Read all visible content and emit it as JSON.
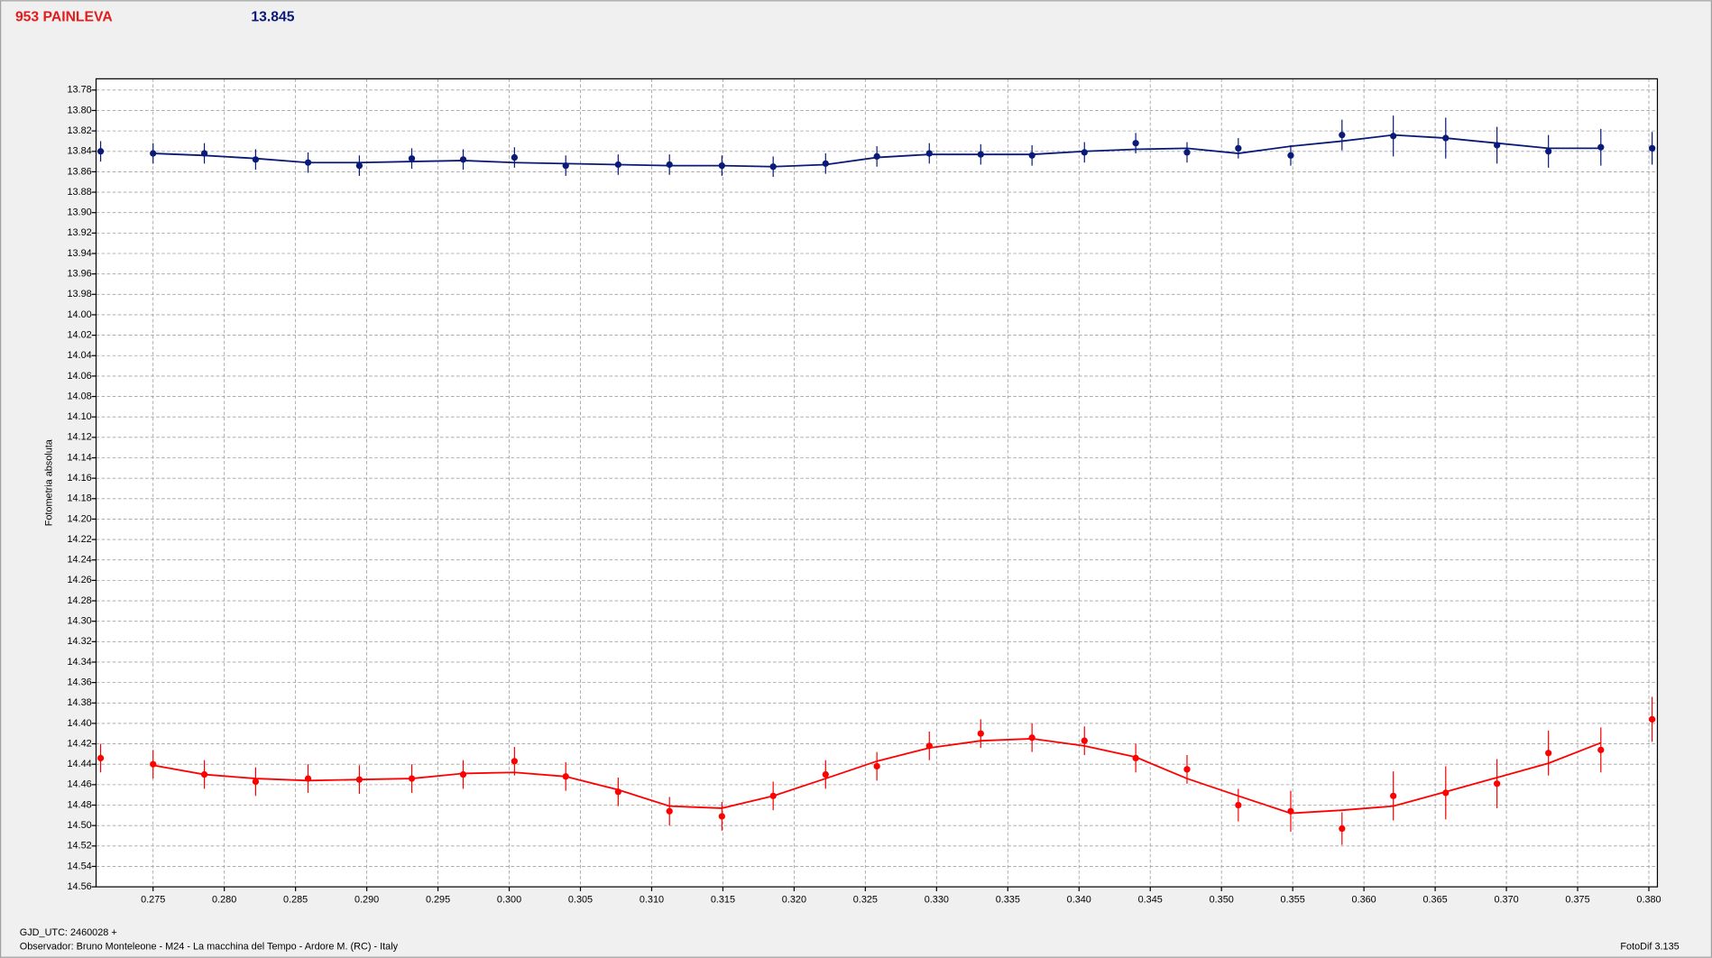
{
  "chart_data": {
    "type": "scatter",
    "title": "953 PAINLEVA",
    "subtitle": "13.845",
    "y_label": "Fotometria absoluta",
    "footer": "GJD_UTC: 2460028 +",
    "observer": "Observador: Bruno Monteleone - M24 - La macchina del Tempo - Ardore M. (RC) - Italy",
    "software": "FotoDif 3.135",
    "xlim": [
      0.271,
      0.3806
    ],
    "ylim": [
      13.769,
      14.56
    ],
    "y_inverted": true,
    "grid": true,
    "xticks": [
      0.275,
      {
        "value": 0.28,
        "label": "0.280"
      },
      0.285,
      {
        "value": 0.29,
        "label": "0.290"
      },
      0.295,
      {
        "value": 0.3,
        "label": "0.300"
      },
      0.305,
      {
        "value": 0.31,
        "label": "0.310"
      },
      0.315,
      {
        "value": 0.32,
        "label": "0.320"
      },
      0.325,
      {
        "value": 0.33,
        "label": "0.330"
      },
      0.335,
      {
        "value": 0.34,
        "label": "0.340"
      },
      0.345,
      {
        "value": 0.35,
        "label": "0.350"
      },
      0.355,
      {
        "value": 0.36,
        "label": "0.360"
      },
      0.365,
      {
        "value": 0.37,
        "label": "0.370"
      },
      0.375,
      {
        "value": 0.38,
        "label": "0.380"
      }
    ],
    "yticks": [
      13.78,
      {
        "value": 13.8,
        "label": "13.80"
      },
      13.82,
      13.84,
      13.86,
      13.88,
      {
        "value": 13.9,
        "label": "13.90"
      },
      13.92,
      13.94,
      13.96,
      13.98,
      {
        "value": 14,
        "label": "14.00"
      },
      14.02,
      14.04,
      14.06,
      14.08,
      {
        "value": 14.1,
        "label": "14.10"
      },
      14.12,
      14.14,
      14.16,
      14.18,
      {
        "value": 14.2,
        "label": "14.20"
      },
      14.22,
      14.24,
      14.26,
      14.28,
      {
        "value": 14.3,
        "label": "14.30"
      },
      14.32,
      14.34,
      14.36,
      14.38,
      {
        "value": 14.4,
        "label": "14.40"
      },
      14.42,
      14.44,
      14.46,
      14.48,
      {
        "value": 14.5,
        "label": "14.50"
      },
      14.52,
      14.54,
      14.56
    ],
    "series": [
      {
        "color": "#0a1a78",
        "style": "points",
        "x": [
          0.27132,
          0.275,
          0.2786,
          0.2822,
          0.28588,
          0.28948,
          0.29316,
          0.29677,
          0.30037,
          0.30397,
          0.30765,
          0.31125,
          0.31493,
          0.31853,
          0.32221,
          0.32581,
          0.32949,
          0.3331,
          0.3367,
          0.34038,
          0.34398,
          0.34758,
          0.35118,
          0.35486,
          0.35846,
          0.36206,
          0.36574,
          0.36934,
          0.37295,
          0.37663,
          0.38023
        ],
        "values": [
          13.84,
          13.842,
          13.842,
          13.848,
          13.851,
          13.854,
          13.847,
          13.848,
          13.846,
          13.854,
          13.853,
          13.853,
          13.854,
          13.855,
          13.852,
          13.845,
          13.842,
          13.843,
          13.844,
          13.841,
          13.832,
          13.841,
          13.837,
          13.844,
          13.824,
          13.825,
          13.827,
          13.834,
          13.84,
          13.836,
          13.837
        ],
        "errors": [
          0.01,
          0.01,
          0.01,
          0.01,
          0.01,
          0.01,
          0.01,
          0.01,
          0.01,
          0.01,
          0.01,
          0.01,
          0.01,
          0.01,
          0.01,
          0.01,
          0.01,
          0.01,
          0.01,
          0.01,
          0.01,
          0.01,
          0.01,
          0.01,
          0.015,
          0.02,
          0.02,
          0.018,
          0.016,
          0.018,
          0.016
        ]
      },
      {
        "color": "#0a1a78",
        "style": "line",
        "x": [
          0.275,
          0.2786,
          0.2822,
          0.28588,
          0.28948,
          0.29316,
          0.29677,
          0.30037,
          0.30397,
          0.30765,
          0.31125,
          0.31493,
          0.31853,
          0.32221,
          0.32581,
          0.32949,
          0.3331,
          0.3367,
          0.34038,
          0.34398,
          0.34758,
          0.35118,
          0.35486,
          0.35846,
          0.36206,
          0.36574,
          0.36934,
          0.37295,
          0.37663
        ],
        "values": [
          13.842,
          13.844,
          13.847,
          13.851,
          13.851,
          13.85,
          13.849,
          13.851,
          13.852,
          13.853,
          13.854,
          13.854,
          13.855,
          13.853,
          13.846,
          13.843,
          13.843,
          13.843,
          13.84,
          13.838,
          13.837,
          13.842,
          13.835,
          13.83,
          13.824,
          13.827,
          13.832,
          13.837,
          13.837
        ]
      },
      {
        "color": "#ff0000",
        "style": "points",
        "x": [
          0.27132,
          0.275,
          0.2786,
          0.2822,
          0.28588,
          0.28948,
          0.29316,
          0.29677,
          0.30037,
          0.30397,
          0.30765,
          0.31125,
          0.31493,
          0.31853,
          0.32221,
          0.32581,
          0.32949,
          0.3331,
          0.3367,
          0.34038,
          0.34398,
          0.34758,
          0.35118,
          0.35486,
          0.35846,
          0.36206,
          0.36574,
          0.36934,
          0.37295,
          0.37663,
          0.38023
        ],
        "values": [
          14.434,
          14.44,
          14.45,
          14.457,
          14.454,
          14.455,
          14.454,
          14.45,
          14.437,
          14.452,
          14.467,
          14.486,
          14.491,
          14.471,
          14.45,
          14.442,
          14.422,
          14.41,
          14.414,
          14.417,
          14.434,
          14.445,
          14.48,
          14.486,
          14.503,
          14.471,
          14.468,
          14.459,
          14.429,
          14.426,
          14.396
        ],
        "errors": [
          0.014,
          0.014,
          0.014,
          0.014,
          0.014,
          0.014,
          0.014,
          0.014,
          0.014,
          0.014,
          0.014,
          0.014,
          0.014,
          0.014,
          0.014,
          0.014,
          0.014,
          0.014,
          0.014,
          0.014,
          0.014,
          0.014,
          0.016,
          0.02,
          0.016,
          0.024,
          0.026,
          0.024,
          0.022,
          0.022,
          0.022
        ]
      },
      {
        "color": "#ff0000",
        "style": "line",
        "x": [
          0.275,
          0.2786,
          0.2822,
          0.28588,
          0.28948,
          0.29316,
          0.29677,
          0.30037,
          0.30397,
          0.30765,
          0.31125,
          0.31493,
          0.31853,
          0.32221,
          0.32581,
          0.32949,
          0.3331,
          0.3367,
          0.34038,
          0.34398,
          0.34758,
          0.35118,
          0.35486,
          0.35846,
          0.36206,
          0.36574,
          0.36934,
          0.37295,
          0.37663
        ],
        "values": [
          14.441,
          14.45,
          14.454,
          14.456,
          14.455,
          14.454,
          14.449,
          14.448,
          14.452,
          14.465,
          14.481,
          14.483,
          14.471,
          14.454,
          14.437,
          14.424,
          14.417,
          14.415,
          14.422,
          14.433,
          14.454,
          14.471,
          14.488,
          14.485,
          14.481,
          14.467,
          14.453,
          14.439,
          14.419
        ]
      }
    ]
  }
}
